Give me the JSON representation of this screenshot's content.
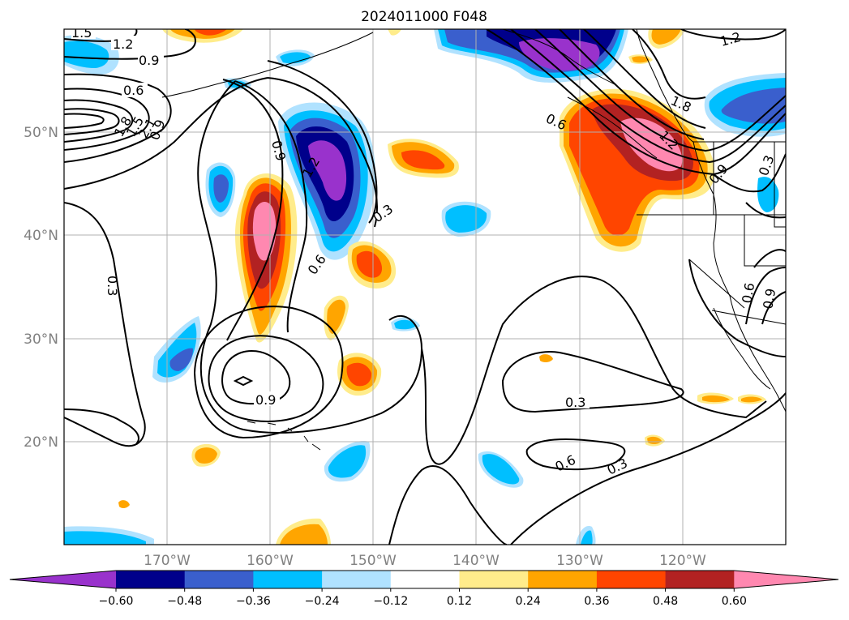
{
  "title": "2024011000 F048",
  "longitude_labels": [
    "170°W",
    "160°W",
    "150°W",
    "140°W",
    "130°W",
    "120°W"
  ],
  "latitude_labels": [
    "50°N",
    "40°N",
    "30°N",
    "20°N"
  ],
  "colorbar": {
    "tick_labels": [
      "−0.60",
      "−0.48",
      "−0.36",
      "−0.24",
      "−0.12",
      "0.12",
      "0.24",
      "0.36",
      "0.48",
      "0.60"
    ],
    "colors": [
      "#9932cc",
      "#00008b",
      "#3a5fcd",
      "#00bfff",
      "#b0e2ff",
      "#ffffff",
      "#ffec8b",
      "#ffa500",
      "#ff4500",
      "#b22222",
      "#ff88b0"
    ]
  },
  "contour_labels": [
    "1.5",
    "1.2",
    "0.9",
    "0.6",
    "1.8",
    "1.5",
    "2.1",
    "0.9",
    "0.9",
    "1.2",
    "0.3",
    "0.6",
    "0.3",
    "0.9",
    "0.3",
    "0.6",
    "0.3",
    "1.2",
    "1.8",
    "0.6",
    "1.2",
    "0.9",
    "0.3",
    "0.6",
    "0.9"
  ]
}
